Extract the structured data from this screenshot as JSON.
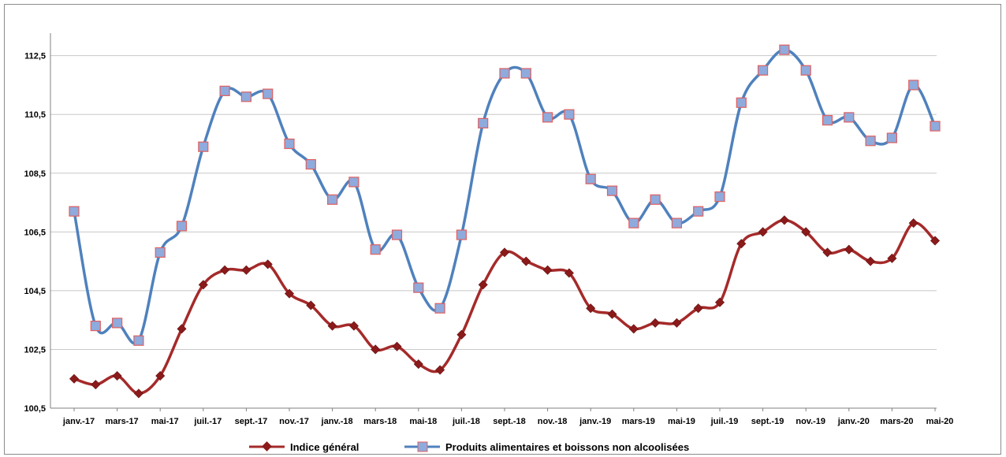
{
  "chart_data": {
    "type": "line",
    "title": "",
    "xlabel": "",
    "ylabel": "",
    "ylim": [
      100.5,
      113.0
    ],
    "y_ticks": [
      "100,5",
      "102,5",
      "104,5",
      "106,5",
      "108,5",
      "110,5",
      "112,5"
    ],
    "y_tick_values": [
      100.5,
      102.5,
      104.5,
      106.5,
      108.5,
      110.5,
      112.5
    ],
    "x_tick_labels": [
      "janv.-17",
      "mars-17",
      "mai-17",
      "juil.-17",
      "sept.-17",
      "nov.-17",
      "janv.-18",
      "mars-18",
      "mai-18",
      "juil.-18",
      "sept.-18",
      "nov.-18",
      "janv.-19",
      "mars-19",
      "mai-19",
      "juil.-19",
      "sept.-19",
      "nov.-19",
      "janv.-20",
      "mars-20",
      "mai-20"
    ],
    "x_tick_index": [
      0,
      2,
      4,
      6,
      8,
      10,
      12,
      14,
      16,
      18,
      20,
      22,
      24,
      26,
      28,
      30,
      32,
      34,
      36,
      38,
      40
    ],
    "grid": true,
    "legend_position": "bottom",
    "series": [
      {
        "name": "Indice général",
        "color": "#a52a2a",
        "marker_color": "#8b1a1a",
        "marker": "diamond",
        "values": [
          101.5,
          101.3,
          101.6,
          101.0,
          101.6,
          103.2,
          104.7,
          105.2,
          105.2,
          105.4,
          104.4,
          104.0,
          103.3,
          103.3,
          102.5,
          102.6,
          102.0,
          101.8,
          103.0,
          104.7,
          105.8,
          105.5,
          105.2,
          105.1,
          103.9,
          103.7,
          103.2,
          103.4,
          103.4,
          103.9,
          104.1,
          106.1,
          106.5,
          106.9,
          106.5,
          105.8,
          105.9,
          105.5,
          105.6,
          106.8,
          106.2
        ]
      },
      {
        "name": "Produits alimentaires et boissons non alcoolisées",
        "color": "#4f81bd",
        "marker_color": "#8faadc",
        "marker_border": "#e06060",
        "marker": "square",
        "values": [
          107.2,
          103.3,
          103.4,
          102.8,
          105.8,
          106.7,
          109.4,
          111.3,
          111.1,
          111.2,
          109.5,
          108.8,
          107.6,
          108.2,
          105.9,
          106.4,
          104.6,
          103.9,
          106.4,
          110.2,
          111.9,
          111.9,
          110.4,
          110.5,
          108.3,
          107.9,
          106.8,
          107.6,
          106.8,
          107.2,
          107.7,
          110.9,
          112.0,
          112.7,
          112.0,
          110.3,
          110.4,
          109.6,
          109.7,
          111.5,
          110.1
        ]
      }
    ]
  }
}
